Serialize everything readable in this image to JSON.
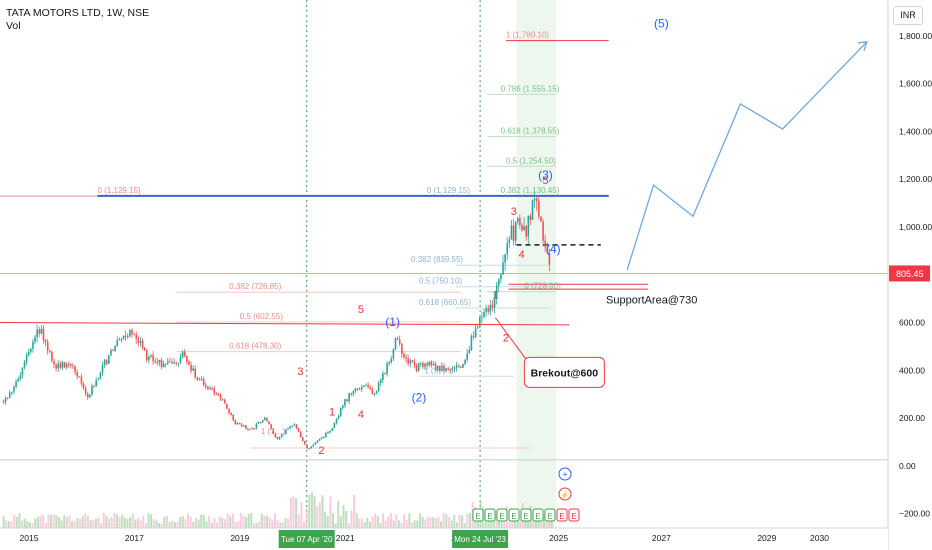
{
  "header": {
    "symbol": "TATA MOTORS LTD, 1W, NSE",
    "volume_label": "Vol"
  },
  "currency": "INR",
  "colors": {
    "up": "#26a69a",
    "down": "#ef5350",
    "fib": "#f28b8b",
    "fib_blue": "#8fb5d8",
    "wave_red": "#e53935",
    "wave_blue": "#2962ff",
    "projection": "#6fa8dc",
    "trend_blue": "#3d66c9",
    "marker_green": "#3fa34d",
    "price_tag": "#f23645"
  },
  "chart_data": {
    "type": "candlestick",
    "title": "TATA MOTORS LTD, 1W, NSE",
    "xlabel": "",
    "ylabel": "INR",
    "ylim": [
      -260,
      1950
    ],
    "xlim": [
      2014.45,
      2031.3
    ],
    "grid": false,
    "y_ticks": [
      "1,800.00",
      "1,600.00",
      "1,400.00",
      "1,200.00",
      "1,000.00",
      "600.00",
      "400.00",
      "200.00",
      "0.00",
      "−200.00"
    ],
    "y_tick_values": [
      1800,
      1600,
      1400,
      1200,
      1000,
      600,
      400,
      200,
      0,
      -200
    ],
    "x_ticks": [
      "2015",
      "2017",
      "2019",
      "2021",
      "20",
      "2025",
      "2027",
      "2029",
      "2030"
    ],
    "x_tick_values": [
      2015.0,
      2017.0,
      2019.0,
      2021.0,
      2023.1,
      2025.05,
      2027.0,
      2029.0,
      2030.0
    ],
    "current_price": "805.45",
    "current_price_value": 805.45,
    "price_path": [
      [
        2014.5,
        270
      ],
      [
        2014.8,
        360
      ],
      [
        2015.15,
        590
      ],
      [
        2015.5,
        410
      ],
      [
        2015.8,
        430
      ],
      [
        2016.1,
        290
      ],
      [
        2016.5,
        460
      ],
      [
        2016.8,
        550
      ],
      [
        2017.0,
        560
      ],
      [
        2017.2,
        460
      ],
      [
        2017.6,
        420
      ],
      [
        2017.9,
        460
      ],
      [
        2018.2,
        360
      ],
      [
        2018.6,
        290
      ],
      [
        2018.9,
        180
      ],
      [
        2019.2,
        150
      ],
      [
        2019.45,
        200
      ],
      [
        2019.7,
        110
      ],
      [
        2020.0,
        180
      ],
      [
        2020.27,
        70
      ],
      [
        2020.5,
        110
      ],
      [
        2020.75,
        160
      ],
      [
        2020.95,
        260
      ],
      [
        2021.15,
        320
      ],
      [
        2021.35,
        340
      ],
      [
        2021.55,
        300
      ],
      [
        2021.8,
        430
      ],
      [
        2021.95,
        520
      ],
      [
        2022.1,
        470
      ],
      [
        2022.3,
        410
      ],
      [
        2022.55,
        420
      ],
      [
        2022.8,
        410
      ],
      [
        2023.0,
        400
      ],
      [
        2023.2,
        430
      ],
      [
        2023.45,
        560
      ],
      [
        2023.6,
        640
      ],
      [
        2023.8,
        680
      ],
      [
        2023.95,
        800
      ],
      [
        2024.1,
        960
      ],
      [
        2024.25,
        1000
      ],
      [
        2024.4,
        960
      ],
      [
        2024.55,
        1100
      ],
      [
        2024.65,
        1060
      ],
      [
        2024.75,
        940
      ],
      [
        2024.82,
        860
      ],
      [
        2024.88,
        805
      ]
    ],
    "volume_baseline": -265,
    "volume_top": -70,
    "elliott_waves": [
      {
        "label": "1",
        "x": 2020.75,
        "y": 210,
        "color": "red"
      },
      {
        "label": "2",
        "x": 2020.55,
        "y": 50,
        "color": "red"
      },
      {
        "label": "3",
        "x": 2020.15,
        "y": 380,
        "color": "red"
      },
      {
        "label": "4",
        "x": 2021.3,
        "y": 200,
        "color": "red"
      },
      {
        "label": "5",
        "x": 2021.3,
        "y": 640,
        "color": "red"
      },
      {
        "label": "(1)",
        "x": 2021.9,
        "y": 585,
        "color": "blue"
      },
      {
        "label": "(2)",
        "x": 2022.4,
        "y": 270,
        "color": "blue"
      },
      {
        "label": "1",
        "x": 2023.85,
        "y": 700,
        "color": "red"
      },
      {
        "label": "2",
        "x": 2024.05,
        "y": 520,
        "color": "red"
      },
      {
        "label": "3",
        "x": 2024.2,
        "y": 1050,
        "color": "red"
      },
      {
        "label": "4",
        "x": 2024.35,
        "y": 870,
        "color": "red"
      },
      {
        "label": "5",
        "x": 2024.8,
        "y": 1180,
        "color": "red"
      },
      {
        "label": "(3)",
        "x": 2024.8,
        "y": 1200,
        "color": "blue"
      },
      {
        "label": "(4)",
        "x": 2024.95,
        "y": 890,
        "color": "blue"
      },
      {
        "label": "(5)",
        "x": 2027.0,
        "y": 1835,
        "color": "blue"
      }
    ],
    "fib_levels": [
      {
        "label": "0 (1,129.15)",
        "x": 2016.3,
        "y": 1129,
        "color": "pink"
      },
      {
        "label": "0.382 (726.85)",
        "x": 2018.8,
        "y": 727,
        "color": "pink"
      },
      {
        "label": "0.5 (602.55)",
        "x": 2019.0,
        "y": 602,
        "color": "pink"
      },
      {
        "label": "0.618 (478.30)",
        "x": 2018.8,
        "y": 478,
        "color": "pink"
      },
      {
        "label": "1 (7…)",
        "x": 2019.4,
        "y": 120,
        "color": "pink"
      },
      {
        "label": "0 (1,129.15)",
        "x": 2022.55,
        "y": 1129,
        "color": "blue"
      },
      {
        "label": "0.382 (839.55)",
        "x": 2022.25,
        "y": 840,
        "color": "blue"
      },
      {
        "label": "0.5 (750.10)",
        "x": 2022.4,
        "y": 750,
        "color": "blue"
      },
      {
        "label": "0.618 (660.65)",
        "x": 2022.4,
        "y": 661,
        "color": "blue"
      },
      {
        "label": "1 (37…)",
        "x": 2022.5,
        "y": 375,
        "color": "blue"
      },
      {
        "label": "1 (1,780.10)",
        "x": 2024.05,
        "y": 1780,
        "color": "pink"
      },
      {
        "label": "0.786 (1,555.15)",
        "x": 2023.95,
        "y": 1555,
        "color": "green"
      },
      {
        "label": "0.618 (1,378.55)",
        "x": 2023.95,
        "y": 1378,
        "color": "green"
      },
      {
        "label": "0.5 (1,254.50)",
        "x": 2024.05,
        "y": 1254,
        "color": "green"
      },
      {
        "label": "0.382 (1,130.45)",
        "x": 2023.95,
        "y": 1130,
        "color": "green"
      },
      {
        "label": "0 (728.90)",
        "x": 2024.4,
        "y": 729,
        "color": "green"
      }
    ],
    "projection_path": [
      [
        2026.35,
        820
      ],
      [
        2026.85,
        1175
      ],
      [
        2027.6,
        1045
      ],
      [
        2028.5,
        1515
      ],
      [
        2029.3,
        1410
      ],
      [
        2030.9,
        1775
      ]
    ],
    "annotations": [
      {
        "text": "SupportArea@730",
        "x": 2025.95,
        "y": 680
      },
      {
        "text": "Brekout@600",
        "x": 2024.4,
        "y": 400
      }
    ],
    "date_markers": [
      {
        "label": "Tue 07 Apr '20",
        "x": 2020.27
      },
      {
        "label": "Mon 24 Jul '23",
        "x": 2023.56
      }
    ]
  }
}
